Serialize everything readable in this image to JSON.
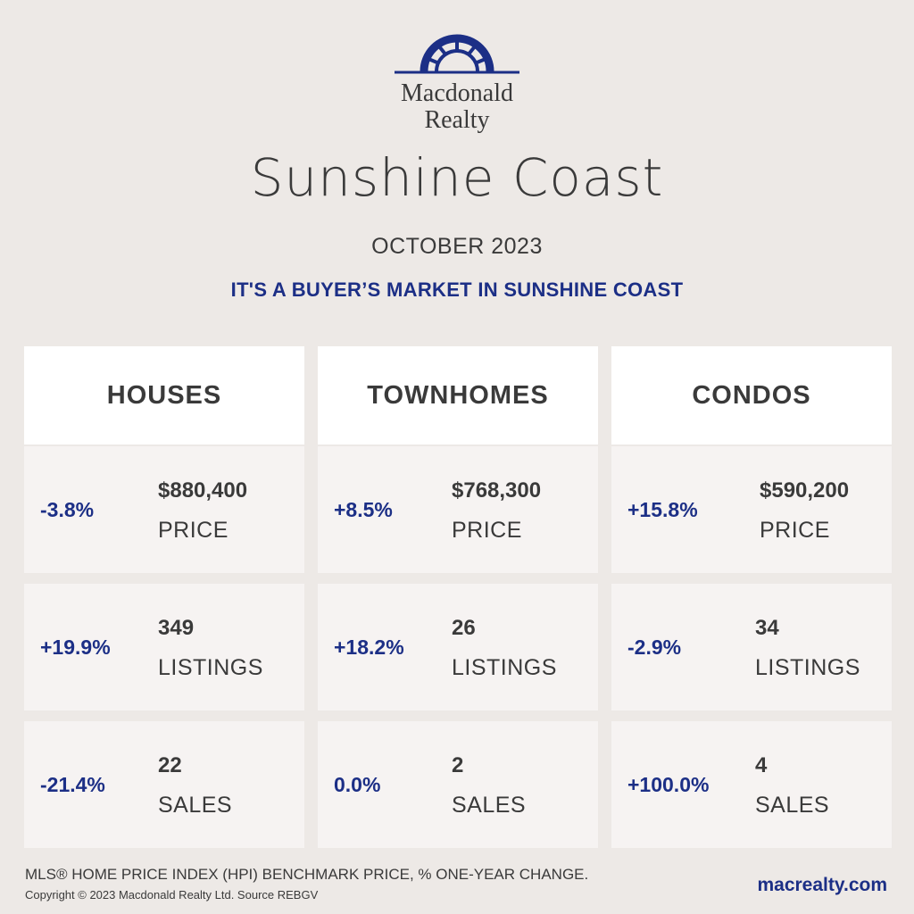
{
  "brand": {
    "line1": "Macdonald",
    "line2": "Realty",
    "logo_icon": "sunrise-arch-logo",
    "color": "#1c2f86"
  },
  "region": "Sunshine Coast",
  "month": "OCTOBER 2023",
  "headline": "IT'S A BUYER’S MARKET IN SUNSHINE COAST",
  "columns": [
    {
      "title": "HOUSES",
      "metrics": [
        {
          "change": "-3.8%",
          "value": "$880,400",
          "label": "PRICE"
        },
        {
          "change": "+19.9%",
          "value": "349",
          "label": "LISTINGS"
        },
        {
          "change": "-21.4%",
          "value": "22",
          "label": "SALES"
        }
      ]
    },
    {
      "title": "TOWNHOMES",
      "metrics": [
        {
          "change": "+8.5%",
          "value": "$768,300",
          "label": "PRICE"
        },
        {
          "change": "+18.2%",
          "value": "26",
          "label": "LISTINGS"
        },
        {
          "change": "0.0%",
          "value": "2",
          "label": "SALES"
        }
      ]
    },
    {
      "title": "CONDOS",
      "metrics": [
        {
          "change": "+15.8%",
          "value": "$590,200",
          "label": "PRICE"
        },
        {
          "change": "-2.9%",
          "value": "34",
          "label": "LISTINGS"
        },
        {
          "change": "+100.0%",
          "value": "4",
          "label": "SALES"
        }
      ]
    }
  ],
  "footnote": "MLS® HOME PRICE INDEX (HPI) BENCHMARK PRICE, % ONE-YEAR CHANGE.",
  "copyright": "Copyright © 2023 Macdonald Realty Ltd. Source REBGV",
  "website": "macrealty.com",
  "colors": {
    "accent": "#1c2f86",
    "background": "#ede9e6",
    "card": "#f6f3f2",
    "header": "#ffffff",
    "text": "#3a3a3a"
  }
}
